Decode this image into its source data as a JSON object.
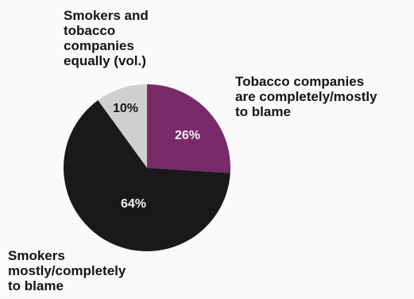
{
  "chart_data": {
    "type": "pie",
    "title": "",
    "slices": [
      {
        "label": "Tobacco companies are completely/mostly to blame",
        "value": 26,
        "value_label": "26%",
        "color": "#7a2a6b",
        "text_color": "#f2f2f2"
      },
      {
        "label": "Smokers mostly/completely to blame",
        "value": 64,
        "value_label": "64%",
        "color": "#1a181b",
        "text_color": "#f2f2f2"
      },
      {
        "label": "Smokers and tobacco companies equally (vol.)",
        "value": 10,
        "value_label": "10%",
        "color": "#cfcfcf",
        "text_color": "#141414"
      }
    ]
  }
}
